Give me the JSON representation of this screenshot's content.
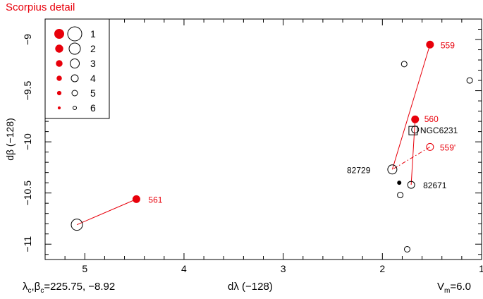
{
  "chart_data": {
    "type": "scatter",
    "title": "Scorpius detail",
    "xlabel": "dλ (−128)",
    "ylabel": "dβ (−128)",
    "xlim": [
      5.4,
      1.0
    ],
    "ylim": [
      -11.15,
      -8.8
    ],
    "xticks": [
      "5",
      "4",
      "3",
      "2",
      "1"
    ],
    "xtick_values": [
      5,
      4,
      3,
      2,
      1
    ],
    "yticks": [
      "−9",
      "−9.5",
      "−10",
      "−10.5",
      "−11"
    ],
    "ytick_values": [
      -9,
      -9.5,
      -10,
      -10.5,
      -11
    ],
    "legend": {
      "placement": "top-left",
      "entries": [
        "1",
        "2",
        "3",
        "4",
        "5",
        "6"
      ]
    },
    "colors": {
      "red": "#e8000b",
      "black": "#000000"
    },
    "points": [
      {
        "x": 1.52,
        "y": -9.05,
        "color": "red",
        "filled": true,
        "mag": 4,
        "label": "559"
      },
      {
        "x": 1.67,
        "y": -9.78,
        "color": "red",
        "filled": true,
        "mag": 4,
        "label": "560"
      },
      {
        "x": 1.52,
        "y": -10.05,
        "color": "red",
        "filled": false,
        "mag": 4,
        "label": "559'"
      },
      {
        "x": 4.48,
        "y": -10.56,
        "color": "red",
        "filled": true,
        "mag": 4,
        "label": "561"
      },
      {
        "x": 5.08,
        "y": -10.81,
        "color": "black",
        "filled": false,
        "mag": 2,
        "label": ""
      },
      {
        "x": 1.9,
        "y": -10.27,
        "color": "black",
        "filled": false,
        "mag": 3,
        "label": "82729"
      },
      {
        "x": 1.71,
        "y": -10.42,
        "color": "black",
        "filled": false,
        "mag": 4,
        "label": "82671"
      },
      {
        "x": 1.67,
        "y": -9.88,
        "color": "black",
        "filled": false,
        "mag": 4,
        "label": ""
      },
      {
        "x": 1.78,
        "y": -9.24,
        "color": "black",
        "filled": false,
        "mag": 5,
        "label": ""
      },
      {
        "x": 1.12,
        "y": -9.4,
        "color": "black",
        "filled": false,
        "mag": 5,
        "label": ""
      },
      {
        "x": 1.82,
        "y": -10.52,
        "color": "black",
        "filled": false,
        "mag": 5,
        "label": ""
      },
      {
        "x": 1.83,
        "y": -10.4,
        "color": "black",
        "filled": true,
        "mag": 6,
        "label": ""
      },
      {
        "x": 1.75,
        "y": -11.05,
        "color": "black",
        "filled": false,
        "mag": 5,
        "label": ""
      }
    ],
    "lines": [
      {
        "from": [
          1.52,
          -9.05
        ],
        "to": [
          1.9,
          -10.27
        ],
        "color": "red",
        "style": "solid"
      },
      {
        "from": [
          1.67,
          -9.78
        ],
        "to": [
          1.71,
          -10.42
        ],
        "color": "red",
        "style": "solid"
      },
      {
        "from": [
          1.52,
          -10.05
        ],
        "to": [
          1.9,
          -10.27
        ],
        "color": "red",
        "style": "dashdot"
      },
      {
        "from": [
          4.48,
          -10.56
        ],
        "to": [
          5.08,
          -10.81
        ],
        "color": "red",
        "style": "solid"
      }
    ],
    "annotations": [
      {
        "text": "NGC6231",
        "marker": "square",
        "x": 1.69,
        "y": -9.89,
        "color": "black"
      }
    ],
    "footer": {
      "left": "λc,βc=225.75, −8.92",
      "left_lambda": "λ",
      "left_lambda_sub": "c",
      "left_beta": "β",
      "left_beta_sub": "c",
      "left_values": "=225.75, −8.92",
      "right": "Vm=6.0",
      "right_v": "V",
      "right_v_sub": "m",
      "right_value": "=6.0"
    }
  }
}
